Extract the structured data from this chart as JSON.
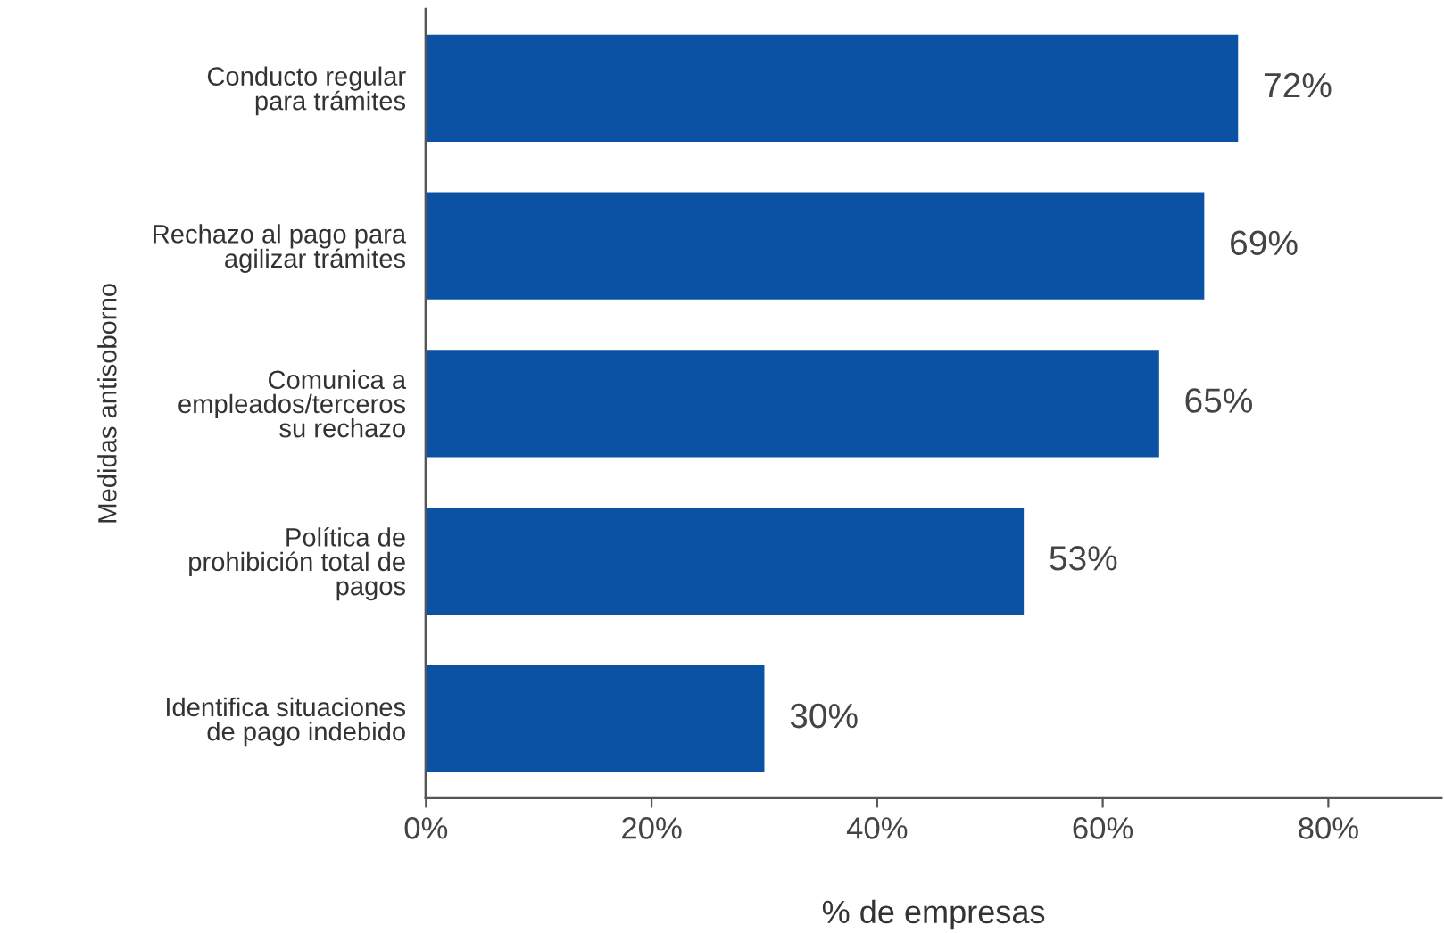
{
  "chart_data": {
    "type": "bar",
    "orientation": "horizontal",
    "categories": [
      "Conducto regular\npara trámites",
      "Rechazo al pago para\nagilizar trámites",
      "Comunica a\nempleados/terceros\nsu rechazo",
      "Política de\nprohibición total de\npagos",
      "Identifica situaciones\nde pago indebido"
    ],
    "values": [
      72,
      69,
      65,
      53,
      30
    ],
    "value_labels": [
      "72%",
      "69%",
      "65%",
      "53%",
      "30%"
    ],
    "color": "#0b52a4",
    "xlabel": "% de empresas",
    "ylabel": "Medidas antisoborno",
    "xlim": [
      0,
      90
    ],
    "xticks": [
      {
        "value": 0,
        "label": "0%"
      },
      {
        "value": 20,
        "label": "20%"
      },
      {
        "value": 40,
        "label": "40%"
      },
      {
        "value": 60,
        "label": "60%"
      },
      {
        "value": 80,
        "label": "80%"
      }
    ],
    "grid": false,
    "legend": false
  }
}
